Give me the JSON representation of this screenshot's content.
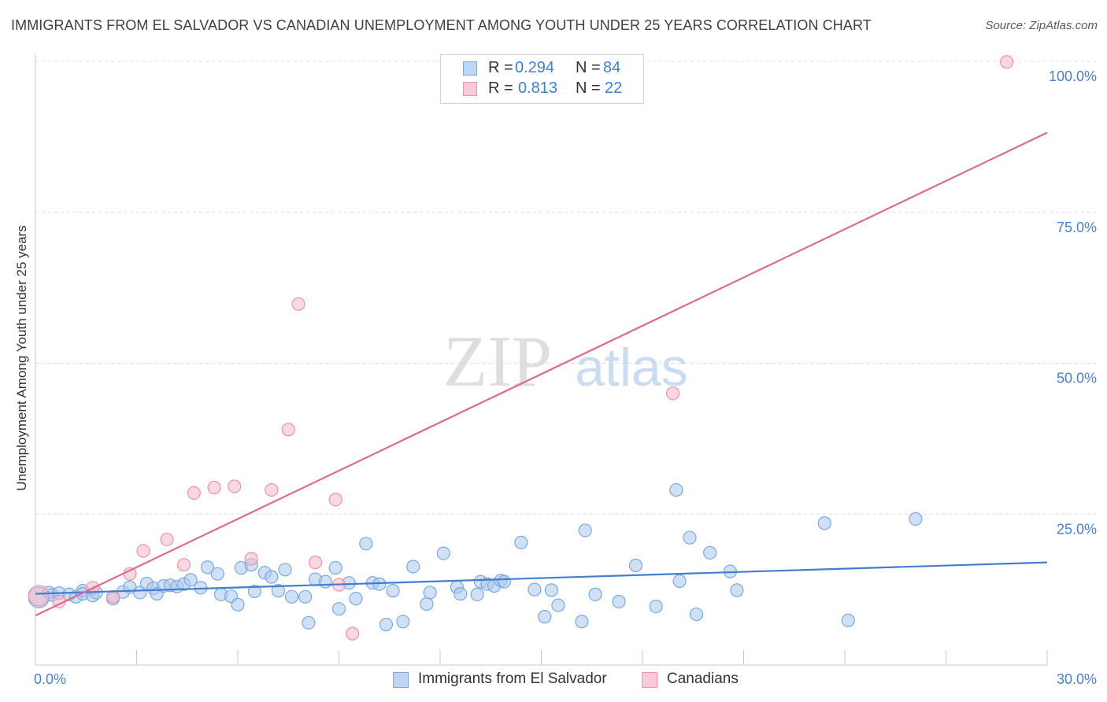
{
  "title": "IMMIGRANTS FROM EL SALVADOR VS CANADIAN UNEMPLOYMENT AMONG YOUTH UNDER 25 YEARS CORRELATION CHART",
  "source": "Source: ZipAtlas.com",
  "watermark": {
    "zip": "ZIP",
    "atlas": "atlas"
  },
  "legend_top": {
    "rows": [
      {
        "r_label": "R =",
        "r_value": "0.294",
        "n_label": "N =",
        "n_value": "84"
      },
      {
        "r_label": "R =",
        "r_value": "0.813",
        "n_label": "N =",
        "n_value": "22"
      }
    ]
  },
  "legend_bottom": [
    {
      "label": "Immigrants from El Salvador"
    },
    {
      "label": "Canadians"
    }
  ],
  "colors": {
    "blue_fill": "#a9c9ef",
    "blue_stroke": "#7aa9e0",
    "blue_line": "#3f7fd0",
    "pink_fill": "#f6b8cb",
    "pink_stroke": "#ee92ae",
    "pink_line": "#e06890",
    "tick_label": "#4a7fcf",
    "grid": "#dcdcdc"
  },
  "chart_data": {
    "type": "scatter",
    "title": "IMMIGRANTS FROM EL SALVADOR VS CANADIAN UNEMPLOYMENT AMONG YOUTH UNDER 25 YEARS CORRELATION CHART",
    "xlabel": "",
    "ylabel": "Unemployment Among Youth under 25 years",
    "xlim": [
      0,
      30
    ],
    "ylim": [
      0,
      100
    ],
    "x_tick_labels": [
      "0.0%",
      "30.0%"
    ],
    "y_ticks": [
      {
        "value": 25,
        "label": "25.0%"
      },
      {
        "value": 50,
        "label": "50.0%"
      },
      {
        "value": 75,
        "label": "75.0%"
      },
      {
        "value": 100,
        "label": "100.0%"
      }
    ],
    "grid": true,
    "series": [
      {
        "name": "Immigrants from El Salvador",
        "trend": {
          "x": [
            0,
            30
          ],
          "y": [
            11.8,
            17.0
          ]
        },
        "points": [
          [
            0.1,
            11.2
          ],
          [
            0.4,
            12.0
          ],
          [
            0.5,
            11.6
          ],
          [
            0.7,
            11.9
          ],
          [
            1.0,
            11.7
          ],
          [
            1.2,
            11.3
          ],
          [
            1.4,
            12.3
          ],
          [
            1.4,
            11.8
          ],
          [
            1.7,
            11.5
          ],
          [
            1.8,
            12.0
          ],
          [
            2.3,
            11.0
          ],
          [
            2.6,
            12.1
          ],
          [
            2.8,
            12.9
          ],
          [
            3.1,
            12.0
          ],
          [
            3.3,
            13.5
          ],
          [
            3.5,
            12.7
          ],
          [
            3.6,
            11.8
          ],
          [
            3.8,
            13.1
          ],
          [
            4.0,
            13.2
          ],
          [
            4.2,
            13.0
          ],
          [
            4.4,
            13.4
          ],
          [
            4.6,
            14.1
          ],
          [
            4.9,
            12.8
          ],
          [
            5.1,
            16.2
          ],
          [
            5.4,
            15.1
          ],
          [
            5.5,
            11.7
          ],
          [
            5.8,
            11.4
          ],
          [
            6.0,
            10.0
          ],
          [
            6.1,
            16.1
          ],
          [
            6.4,
            16.6
          ],
          [
            6.5,
            12.2
          ],
          [
            6.8,
            15.3
          ],
          [
            7.0,
            14.6
          ],
          [
            7.2,
            12.3
          ],
          [
            7.4,
            15.8
          ],
          [
            7.6,
            11.3
          ],
          [
            8.0,
            11.3
          ],
          [
            8.1,
            7.0
          ],
          [
            8.3,
            14.2
          ],
          [
            8.6,
            13.8
          ],
          [
            8.9,
            16.1
          ],
          [
            9.0,
            9.3
          ],
          [
            9.3,
            13.6
          ],
          [
            9.5,
            11.0
          ],
          [
            9.8,
            20.1
          ],
          [
            10.0,
            13.6
          ],
          [
            10.2,
            13.4
          ],
          [
            10.4,
            6.7
          ],
          [
            10.6,
            12.3
          ],
          [
            10.9,
            7.2
          ],
          [
            11.2,
            16.3
          ],
          [
            11.6,
            10.1
          ],
          [
            11.7,
            12.0
          ],
          [
            12.1,
            18.5
          ],
          [
            12.5,
            12.9
          ],
          [
            12.6,
            11.8
          ],
          [
            13.1,
            11.7
          ],
          [
            13.2,
            13.8
          ],
          [
            13.4,
            13.4
          ],
          [
            13.6,
            13.1
          ],
          [
            13.8,
            14.0
          ],
          [
            13.9,
            13.8
          ],
          [
            14.4,
            20.3
          ],
          [
            14.8,
            12.5
          ],
          [
            15.1,
            8.0
          ],
          [
            15.3,
            12.4
          ],
          [
            15.5,
            9.9
          ],
          [
            16.2,
            7.2
          ],
          [
            16.3,
            22.3
          ],
          [
            16.6,
            11.7
          ],
          [
            17.3,
            10.5
          ],
          [
            17.8,
            16.5
          ],
          [
            18.4,
            9.7
          ],
          [
            19.0,
            29.0
          ],
          [
            19.1,
            13.9
          ],
          [
            19.4,
            21.1
          ],
          [
            19.6,
            8.4
          ],
          [
            20.0,
            18.6
          ],
          [
            20.6,
            15.5
          ],
          [
            20.8,
            12.4
          ],
          [
            23.4,
            23.5
          ],
          [
            24.1,
            7.4
          ],
          [
            26.1,
            24.2
          ]
        ]
      },
      {
        "name": "Canadians",
        "trend": {
          "x": [
            0,
            30
          ],
          "y": [
            8.2,
            88.2
          ]
        },
        "points": [
          [
            0.1,
            11.5
          ],
          [
            0.7,
            10.5
          ],
          [
            1.7,
            12.8
          ],
          [
            2.3,
            11.3
          ],
          [
            2.8,
            15.1
          ],
          [
            3.2,
            18.9
          ],
          [
            3.9,
            20.8
          ],
          [
            4.4,
            16.6
          ],
          [
            4.7,
            28.5
          ],
          [
            5.3,
            29.4
          ],
          [
            5.9,
            29.6
          ],
          [
            6.4,
            17.6
          ],
          [
            7.0,
            29.0
          ],
          [
            7.5,
            39.0
          ],
          [
            7.8,
            59.8
          ],
          [
            8.3,
            17.0
          ],
          [
            8.9,
            27.4
          ],
          [
            9.0,
            13.3
          ],
          [
            9.4,
            5.2
          ],
          [
            18.9,
            45.0
          ],
          [
            28.8,
            99.9
          ]
        ]
      }
    ]
  }
}
